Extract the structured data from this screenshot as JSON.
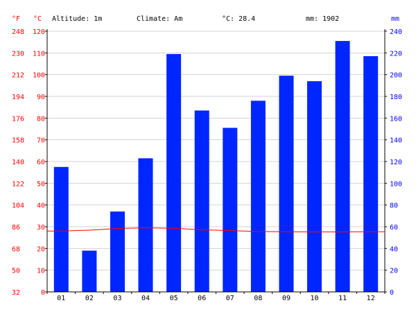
{
  "header": {
    "altitude": "Altitude: 1m",
    "climate": "Climate: Am",
    "mean_temp": "°C: 28.4",
    "total_precip": "mm: 1902"
  },
  "axis_units": {
    "fahrenheit": "°F",
    "celsius": "°C",
    "millimeters": "mm"
  },
  "colors": {
    "bars": "#0026ff",
    "temperature_line": "#ff0000",
    "left_ticks": "#ff0000",
    "right_ticks": "#0000ff",
    "grid": "#d3d3d3"
  },
  "chart_data": {
    "type": "bar",
    "categories": [
      "01",
      "02",
      "03",
      "04",
      "05",
      "06",
      "07",
      "08",
      "09",
      "10",
      "11",
      "12"
    ],
    "series": [
      {
        "type": "bar",
        "axis": "right",
        "values": [
          115,
          38,
          74,
          123,
          219,
          167,
          151,
          176,
          199,
          194,
          231,
          217
        ]
      },
      {
        "type": "line",
        "axis": "left",
        "values": [
          28.0,
          28.4,
          29.2,
          29.5,
          29.3,
          28.6,
          28.2,
          27.8,
          27.7,
          27.6,
          27.6,
          27.7
        ]
      }
    ],
    "y_left_celsius": {
      "min": 0,
      "max": 120,
      "ticks": [
        0,
        10,
        20,
        30,
        40,
        50,
        60,
        70,
        80,
        90,
        100,
        110,
        120
      ]
    },
    "y_left_fahrenheit": {
      "ticks": [
        32,
        50,
        68,
        86,
        104,
        122,
        140,
        158,
        176,
        194,
        212,
        230,
        248
      ]
    },
    "y_right_mm": {
      "min": 0,
      "max": 240,
      "ticks": [
        0,
        20,
        40,
        60,
        80,
        100,
        120,
        140,
        160,
        180,
        200,
        220,
        240
      ]
    },
    "grid": true
  }
}
